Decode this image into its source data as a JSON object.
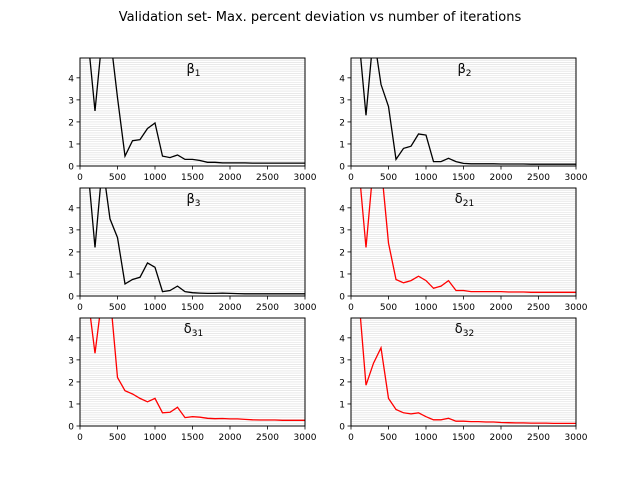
{
  "figure": {
    "title": "Validation set- Max. percent deviation vs number of iterations"
  },
  "chart_data": [
    {
      "type": "line",
      "title": "β",
      "title_sub": "1",
      "color": "#000000",
      "xlim": [
        0,
        3000
      ],
      "ylim": [
        0,
        4.9
      ],
      "xticks": [
        0,
        500,
        1000,
        1500,
        2000,
        2500,
        3000
      ],
      "yticks": [
        0,
        1,
        2,
        3,
        4
      ],
      "grid": "horizontal minor",
      "x": [
        100,
        200,
        300,
        400,
        500,
        600,
        700,
        800,
        900,
        1000,
        1100,
        1200,
        1300,
        1400,
        1500,
        1600,
        1700,
        1800,
        1900,
        2000,
        2100,
        2200,
        2300,
        2400,
        2500,
        2600,
        2700,
        2800,
        2900,
        3000
      ],
      "values": [
        6.0,
        2.5,
        6.0,
        6.0,
        3.1,
        0.45,
        1.15,
        1.2,
        1.7,
        1.95,
        0.45,
        0.38,
        0.5,
        0.3,
        0.3,
        0.25,
        0.17,
        0.17,
        0.14,
        0.14,
        0.14,
        0.14,
        0.13,
        0.13,
        0.13,
        0.13,
        0.13,
        0.13,
        0.13,
        0.13
      ]
    },
    {
      "type": "line",
      "title": "β",
      "title_sub": "2",
      "color": "#000000",
      "xlim": [
        0,
        3000
      ],
      "ylim": [
        0,
        4.9
      ],
      "xticks": [
        0,
        500,
        1000,
        1500,
        2000,
        2500,
        3000
      ],
      "yticks": [
        0,
        1,
        2,
        3,
        4
      ],
      "grid": "horizontal minor",
      "x": [
        100,
        200,
        300,
        400,
        500,
        600,
        700,
        800,
        900,
        1000,
        1100,
        1200,
        1300,
        1400,
        1500,
        1600,
        1700,
        1800,
        1900,
        2000,
        2100,
        2200,
        2300,
        2400,
        2500,
        2600,
        2700,
        2800,
        2900,
        3000
      ],
      "values": [
        6.0,
        2.3,
        6.0,
        3.7,
        2.7,
        0.3,
        0.8,
        0.9,
        1.45,
        1.4,
        0.2,
        0.2,
        0.35,
        0.2,
        0.12,
        0.1,
        0.1,
        0.1,
        0.1,
        0.09,
        0.09,
        0.09,
        0.09,
        0.08,
        0.08,
        0.08,
        0.08,
        0.08,
        0.08,
        0.08
      ]
    },
    {
      "type": "line",
      "title": "β",
      "title_sub": "3",
      "color": "#000000",
      "xlim": [
        0,
        3000
      ],
      "ylim": [
        0,
        4.9
      ],
      "xticks": [
        0,
        500,
        1000,
        1500,
        2000,
        2500,
        3000
      ],
      "yticks": [
        0,
        1,
        2,
        3,
        4
      ],
      "grid": "horizontal minor",
      "x": [
        100,
        200,
        300,
        400,
        500,
        600,
        700,
        800,
        900,
        1000,
        1100,
        1200,
        1300,
        1400,
        1500,
        1600,
        1700,
        1800,
        1900,
        2000,
        2100,
        2200,
        2300,
        2400,
        2500,
        2600,
        2700,
        2800,
        2900,
        3000
      ],
      "values": [
        6.0,
        2.2,
        6.0,
        3.5,
        2.65,
        0.55,
        0.75,
        0.85,
        1.5,
        1.3,
        0.2,
        0.25,
        0.45,
        0.2,
        0.15,
        0.13,
        0.12,
        0.12,
        0.13,
        0.12,
        0.11,
        0.1,
        0.1,
        0.1,
        0.1,
        0.1,
        0.1,
        0.1,
        0.1,
        0.1
      ]
    },
    {
      "type": "line",
      "title": "δ",
      "title_sub": "21",
      "color": "#ff0000",
      "xlim": [
        0,
        3000
      ],
      "ylim": [
        0,
        4.9
      ],
      "xticks": [
        0,
        500,
        1000,
        1500,
        2000,
        2500,
        3000
      ],
      "yticks": [
        0,
        1,
        2,
        3,
        4
      ],
      "grid": "horizontal minor",
      "x": [
        100,
        200,
        300,
        400,
        500,
        600,
        700,
        800,
        900,
        1000,
        1100,
        1200,
        1300,
        1400,
        1500,
        1600,
        1700,
        1800,
        1900,
        2000,
        2100,
        2200,
        2300,
        2400,
        2500,
        2600,
        2700,
        2800,
        2900,
        3000
      ],
      "values": [
        6.0,
        2.2,
        6.0,
        6.0,
        2.4,
        0.75,
        0.6,
        0.7,
        0.9,
        0.7,
        0.35,
        0.45,
        0.7,
        0.25,
        0.25,
        0.2,
        0.2,
        0.2,
        0.2,
        0.2,
        0.18,
        0.18,
        0.18,
        0.17,
        0.17,
        0.17,
        0.17,
        0.17,
        0.17,
        0.17
      ]
    },
    {
      "type": "line",
      "title": "δ",
      "title_sub": "31",
      "color": "#ff0000",
      "xlim": [
        0,
        3000
      ],
      "ylim": [
        0,
        4.9
      ],
      "xticks": [
        0,
        500,
        1000,
        1500,
        2000,
        2500,
        3000
      ],
      "yticks": [
        0,
        1,
        2,
        3,
        4
      ],
      "grid": "horizontal minor",
      "x": [
        100,
        200,
        300,
        400,
        500,
        600,
        700,
        800,
        900,
        1000,
        1100,
        1200,
        1300,
        1400,
        1500,
        1600,
        1700,
        1800,
        1900,
        2000,
        2100,
        2200,
        2300,
        2400,
        2500,
        2600,
        2700,
        2800,
        2900,
        3000
      ],
      "values": [
        6.0,
        3.3,
        6.0,
        6.0,
        2.2,
        1.6,
        1.45,
        1.25,
        1.1,
        1.25,
        0.6,
        0.62,
        0.85,
        0.38,
        0.42,
        0.4,
        0.35,
        0.33,
        0.34,
        0.32,
        0.32,
        0.3,
        0.28,
        0.27,
        0.27,
        0.27,
        0.26,
        0.26,
        0.26,
        0.26
      ]
    },
    {
      "type": "line",
      "title": "δ",
      "title_sub": "32",
      "color": "#ff0000",
      "xlim": [
        0,
        3000
      ],
      "ylim": [
        0,
        4.9
      ],
      "xticks": [
        0,
        500,
        1000,
        1500,
        2000,
        2500,
        3000
      ],
      "yticks": [
        0,
        1,
        2,
        3,
        4
      ],
      "grid": "horizontal minor",
      "x": [
        100,
        200,
        300,
        400,
        500,
        600,
        700,
        800,
        900,
        1000,
        1100,
        1200,
        1300,
        1400,
        1500,
        1600,
        1700,
        1800,
        1900,
        2000,
        2100,
        2200,
        2300,
        2400,
        2500,
        2600,
        2700,
        2800,
        2900,
        3000
      ],
      "values": [
        6.0,
        1.85,
        2.85,
        3.55,
        1.25,
        0.75,
        0.6,
        0.55,
        0.6,
        0.42,
        0.28,
        0.28,
        0.35,
        0.22,
        0.22,
        0.2,
        0.2,
        0.18,
        0.18,
        0.16,
        0.15,
        0.14,
        0.14,
        0.13,
        0.13,
        0.13,
        0.12,
        0.12,
        0.12,
        0.12
      ]
    }
  ]
}
